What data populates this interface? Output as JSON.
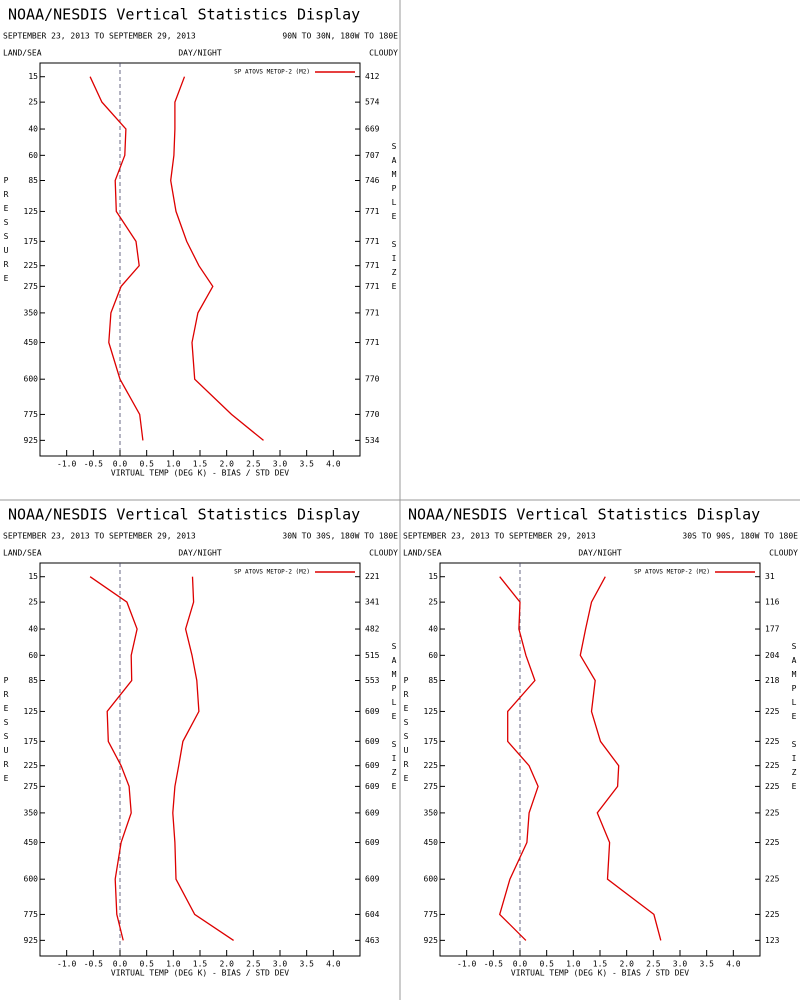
{
  "chart_data": [
    {
      "type": "line",
      "title": "NOAA/NESDIS Vertical Statistics Display",
      "subtitle": "SEPTEMBER 23, 2013 TO SEPTEMBER 29, 2013",
      "region": "90N TO 30N, 180W TO 180E",
      "land_sea": "LAND/SEA",
      "day_night": "DAY/NIGHT",
      "cloudy": "CLOUDY",
      "xlabel": "VIRTUAL TEMP (DEG K) - BIAS / STD DEV",
      "ylabel": "PRESSURE",
      "y2label": "SAMPLE SIZE",
      "xlim": [
        -1.5,
        4.5
      ],
      "ylim": [
        11,
        1025
      ],
      "xticks": [
        {
          "value": -1,
          "label": "-1.0"
        },
        {
          "value": -0.5,
          "label": "-0.5"
        },
        {
          "value": 0,
          "label": "0.0"
        },
        {
          "value": 0.5,
          "label": "0.5"
        },
        {
          "value": 1,
          "label": "1.0"
        },
        {
          "value": 1.5,
          "label": "1.5"
        },
        {
          "value": 2,
          "label": "2.0"
        },
        {
          "value": 2.5,
          "label": "2.5"
        },
        {
          "value": 3,
          "label": "3.0"
        },
        {
          "value": 3.5,
          "label": "3.5"
        },
        {
          "value": 4,
          "label": "4.0"
        }
      ],
      "y": [
        15,
        25,
        40,
        60,
        85,
        125,
        175,
        225,
        275,
        350,
        450,
        600,
        775,
        925
      ],
      "sample_size": [
        412,
        574,
        669,
        707,
        746,
        771,
        771,
        771,
        771,
        771,
        771,
        770,
        770,
        534
      ],
      "legend": "upper right",
      "series": [
        {
          "name": "SP ATOVS METOP-2 (M2)",
          "color": "#dd0000",
          "bias": [
            -0.56,
            -0.34,
            0.11,
            0.09,
            -0.09,
            -0.07,
            0.3,
            0.36,
            0.02,
            -0.17,
            -0.21,
            0.0,
            0.37,
            0.43
          ],
          "std_dev": [
            1.21,
            1.03,
            1.03,
            1.01,
            0.95,
            1.05,
            1.25,
            1.48,
            1.74,
            1.46,
            1.35,
            1.4,
            2.09,
            2.69
          ]
        }
      ]
    },
    {
      "type": "line",
      "title": "NOAA/NESDIS Vertical Statistics Display",
      "subtitle": "SEPTEMBER 23, 2013 TO SEPTEMBER 29, 2013",
      "region": "30N TO 30S, 180W TO 180E",
      "land_sea": "LAND/SEA",
      "day_night": "DAY/NIGHT",
      "cloudy": "CLOUDY",
      "xlabel": "VIRTUAL TEMP (DEG K) - BIAS / STD DEV",
      "ylabel": "PRESSURE",
      "y2label": "SAMPLE SIZE",
      "xlim": [
        -1.5,
        4.5
      ],
      "ylim": [
        11,
        1025
      ],
      "xticks": [
        {
          "value": -1,
          "label": "-1.0"
        },
        {
          "value": -0.5,
          "label": "-0.5"
        },
        {
          "value": 0,
          "label": "0.0"
        },
        {
          "value": 0.5,
          "label": "0.5"
        },
        {
          "value": 1,
          "label": "1.0"
        },
        {
          "value": 1.5,
          "label": "1.5"
        },
        {
          "value": 2,
          "label": "2.0"
        },
        {
          "value": 2.5,
          "label": "2.5"
        },
        {
          "value": 3,
          "label": "3.0"
        },
        {
          "value": 3.5,
          "label": "3.5"
        },
        {
          "value": 4,
          "label": "4.0"
        }
      ],
      "y": [
        15,
        25,
        40,
        60,
        85,
        125,
        175,
        225,
        275,
        350,
        450,
        600,
        775,
        925
      ],
      "sample_size": [
        221,
        341,
        482,
        515,
        553,
        609,
        609,
        609,
        609,
        609,
        609,
        609,
        604,
        463
      ],
      "legend": "upper right",
      "series": [
        {
          "name": "SP ATOVS METOP-2 (M2)",
          "color": "#dd0000",
          "bias": [
            -0.56,
            0.13,
            0.32,
            0.21,
            0.22,
            -0.24,
            -0.22,
            0.02,
            0.17,
            0.21,
            0.02,
            -0.09,
            -0.06,
            0.06
          ],
          "std_dev": [
            1.36,
            1.38,
            1.23,
            1.35,
            1.44,
            1.48,
            1.18,
            1.1,
            1.03,
            0.99,
            1.03,
            1.05,
            1.4,
            2.13
          ]
        }
      ]
    },
    {
      "type": "line",
      "title": "NOAA/NESDIS Vertical Statistics Display",
      "subtitle": "SEPTEMBER 23, 2013 TO SEPTEMBER 29, 2013",
      "region": "30S TO 90S, 180W TO 180E",
      "land_sea": "LAND/SEA",
      "day_night": "DAY/NIGHT",
      "cloudy": "CLOUDY",
      "xlabel": "VIRTUAL TEMP (DEG K) - BIAS / STD DEV",
      "ylabel": "PRESSURE",
      "y2label": "SAMPLE SIZE",
      "xlim": [
        -1.5,
        4.5
      ],
      "ylim": [
        11,
        1025
      ],
      "xticks": [
        {
          "value": -1,
          "label": "-1.0"
        },
        {
          "value": -0.5,
          "label": "-0.5"
        },
        {
          "value": 0,
          "label": "0.0"
        },
        {
          "value": 0.5,
          "label": "0.5"
        },
        {
          "value": 1,
          "label": "1.0"
        },
        {
          "value": 1.5,
          "label": "1.5"
        },
        {
          "value": 2,
          "label": "2.0"
        },
        {
          "value": 2.5,
          "label": "2.5"
        },
        {
          "value": 3,
          "label": "3.0"
        },
        {
          "value": 3.5,
          "label": "3.5"
        },
        {
          "value": 4,
          "label": "4.0"
        }
      ],
      "y": [
        15,
        25,
        40,
        60,
        85,
        125,
        175,
        225,
        275,
        350,
        450,
        600,
        775,
        925
      ],
      "sample_size": [
        31,
        116,
        177,
        204,
        218,
        225,
        225,
        225,
        225,
        225,
        225,
        225,
        225,
        123
      ],
      "legend": "upper right",
      "series": [
        {
          "name": "SP ATOVS METOP-2 (M2)",
          "color": "#dd0000",
          "bias": [
            -0.38,
            0.0,
            -0.02,
            0.11,
            0.28,
            -0.23,
            -0.23,
            0.17,
            0.34,
            0.17,
            0.13,
            -0.19,
            -0.38,
            0.11
          ],
          "std_dev": [
            1.6,
            1.34,
            1.23,
            1.13,
            1.41,
            1.34,
            1.51,
            1.85,
            1.83,
            1.45,
            1.68,
            1.64,
            2.51,
            2.64
          ]
        }
      ]
    }
  ]
}
